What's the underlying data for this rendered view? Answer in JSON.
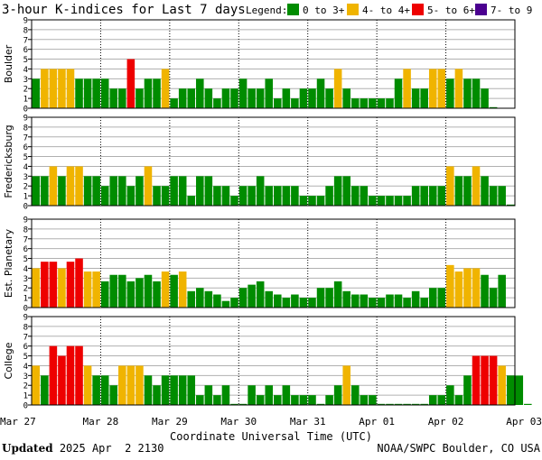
{
  "title": "3-hour K-indices for Last 7 days",
  "legend": {
    "label": "Legend:",
    "items": [
      {
        "text": "0 to 3+",
        "color": "#008c00"
      },
      {
        "text": "4- to 4+",
        "color": "#f0b400"
      },
      {
        "text": "5- to 6+",
        "color": "#ee0000"
      },
      {
        "text": "7- to 9",
        "color": "#4b0090"
      }
    ]
  },
  "x_axis": {
    "label": "Coordinate Universal Time (UTC)",
    "ticks": [
      "Mar 27",
      "Mar 28",
      "Mar 29",
      "Mar 30",
      "Mar 31",
      "Apr 01",
      "Apr 02",
      "Apr 03"
    ]
  },
  "footer": {
    "updated_label": "Updated",
    "updated_value": " 2025 Apr  2 2130",
    "credit": "NOAA/SWPC Boulder, CO USA"
  },
  "chart_data": {
    "type": "bar",
    "title": "3-hour K-indices for Last 7 days",
    "xlabel": "Coordinate Universal Time (UTC)",
    "ylim": [
      0,
      9
    ],
    "yticks": [
      0,
      1,
      2,
      3,
      4,
      5,
      6,
      7,
      8,
      9
    ],
    "x_range": [
      "2025-03-27 00:00",
      "2025-04-03 00:00"
    ],
    "bar_interval_hours": 3,
    "color_scale": [
      {
        "range": [
          0,
          3.67
        ],
        "color": "#008c00"
      },
      {
        "range": [
          3.67,
          4.67
        ],
        "color": "#f0b400"
      },
      {
        "range": [
          4.67,
          6.67
        ],
        "color": "#ee0000"
      },
      {
        "range": [
          6.67,
          9
        ],
        "color": "#4b0090"
      }
    ],
    "panels": [
      {
        "name": "Boulder",
        "values": [
          3,
          4,
          4,
          4,
          4,
          3,
          3,
          3,
          3,
          2,
          2,
          5,
          2,
          3,
          3,
          4,
          1,
          2,
          2,
          3,
          2,
          1,
          2,
          2,
          3,
          2,
          2,
          3,
          1,
          2,
          1,
          2,
          2,
          3,
          2,
          4,
          2,
          1,
          1,
          1,
          1,
          1,
          3,
          4,
          2,
          2,
          4,
          4,
          3,
          4,
          3,
          3,
          2,
          0
        ]
      },
      {
        "name": "Fredericksburg",
        "values": [
          3,
          3,
          4,
          3,
          4,
          4,
          3,
          3,
          2,
          3,
          3,
          2,
          3,
          4,
          2,
          2,
          3,
          3,
          1,
          3,
          3,
          2,
          2,
          1,
          2,
          2,
          3,
          2,
          2,
          2,
          2,
          1,
          1,
          1,
          2,
          3,
          3,
          2,
          2,
          1,
          1,
          1,
          1,
          1,
          2,
          2,
          2,
          2,
          4,
          3,
          3,
          4,
          3,
          2,
          2,
          0
        ]
      },
      {
        "name": "Est. Planetary",
        "values": [
          4,
          4.67,
          4.67,
          4,
          4.67,
          5,
          3.67,
          3.67,
          2.67,
          3.33,
          3.33,
          2.67,
          3,
          3.33,
          2.67,
          3.67,
          3.33,
          3.67,
          1.67,
          2,
          1.67,
          1.33,
          0.67,
          1,
          2,
          2.33,
          2.67,
          1.67,
          1.33,
          1,
          1.33,
          1,
          1,
          2,
          2,
          2.67,
          1.67,
          1.33,
          1.33,
          1,
          1,
          1.33,
          1.33,
          1,
          1.67,
          1,
          2,
          2,
          4.33,
          3.67,
          4,
          4,
          3.33,
          2,
          3.33
        ]
      },
      {
        "name": "College",
        "values": [
          4,
          3,
          6,
          5,
          6,
          6,
          4,
          3,
          3,
          2,
          4,
          4,
          4,
          3,
          2,
          3,
          3,
          3,
          3,
          1,
          2,
          1,
          2,
          0,
          0,
          2,
          1,
          2,
          1,
          2,
          1,
          1,
          1,
          0,
          1,
          2,
          4,
          2,
          1,
          1,
          0,
          0,
          0,
          0,
          0,
          0,
          1,
          1,
          2,
          1,
          3,
          5,
          5,
          5,
          4,
          3,
          3,
          0
        ]
      }
    ]
  }
}
